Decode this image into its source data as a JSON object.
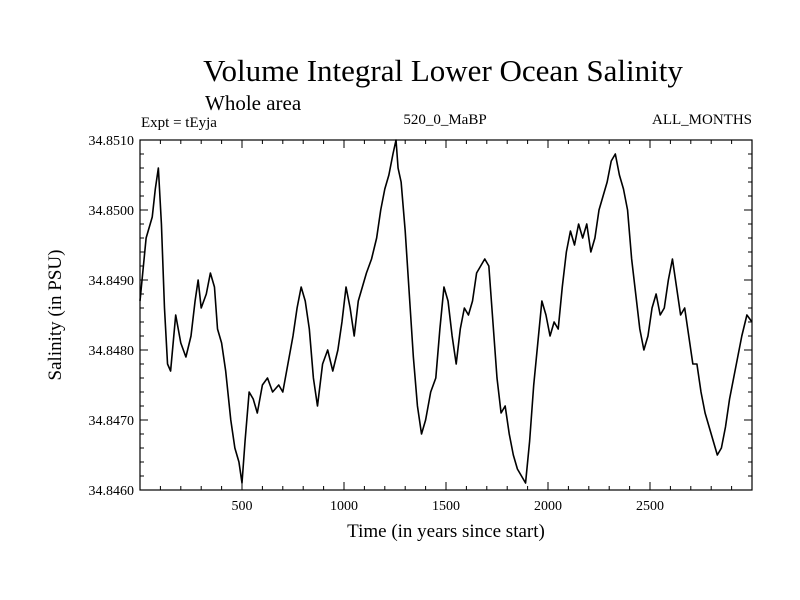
{
  "chart_data": {
    "type": "line",
    "title": "Volume Integral Lower Ocean Salinity",
    "subtitle": "Whole area",
    "experiment": "Expt = tEyja",
    "run_label": "520_0_MaBP",
    "months_label": "ALL_MONTHS",
    "xlabel": "Time (in years since start)",
    "ylabel": "Salinity (in PSU)",
    "xlim": [
      0,
      3000
    ],
    "ylim": [
      34.846,
      34.851
    ],
    "x_ticks": [
      500,
      1000,
      1500,
      2000,
      2500
    ],
    "y_ticks": [
      "34.8460",
      "34.8470",
      "34.8480",
      "34.8490",
      "34.8500",
      "34.8510"
    ],
    "series": [
      {
        "name": "Salinity",
        "color": "#000000",
        "points": [
          [
            0,
            34.8487
          ],
          [
            30,
            34.8496
          ],
          [
            60,
            34.8499
          ],
          [
            75,
            34.8503
          ],
          [
            90,
            34.8506
          ],
          [
            105,
            34.8498
          ],
          [
            120,
            34.8486
          ],
          [
            135,
            34.8478
          ],
          [
            150,
            34.8477
          ],
          [
            175,
            34.8485
          ],
          [
            200,
            34.8481
          ],
          [
            225,
            34.8479
          ],
          [
            250,
            34.8482
          ],
          [
            270,
            34.8487
          ],
          [
            285,
            34.849
          ],
          [
            300,
            34.8486
          ],
          [
            325,
            34.8488
          ],
          [
            345,
            34.8491
          ],
          [
            365,
            34.8489
          ],
          [
            380,
            34.8483
          ],
          [
            400,
            34.8481
          ],
          [
            420,
            34.8477
          ],
          [
            445,
            34.847
          ],
          [
            465,
            34.8466
          ],
          [
            485,
            34.8464
          ],
          [
            500,
            34.8461
          ],
          [
            515,
            34.8467
          ],
          [
            535,
            34.8474
          ],
          [
            555,
            34.8473
          ],
          [
            575,
            34.8471
          ],
          [
            600,
            34.8475
          ],
          [
            625,
            34.8476
          ],
          [
            650,
            34.8474
          ],
          [
            680,
            34.8475
          ],
          [
            700,
            34.8474
          ],
          [
            725,
            34.8478
          ],
          [
            750,
            34.8482
          ],
          [
            770,
            34.8486
          ],
          [
            790,
            34.8489
          ],
          [
            810,
            34.8487
          ],
          [
            830,
            34.8483
          ],
          [
            850,
            34.8476
          ],
          [
            870,
            34.8472
          ],
          [
            895,
            34.8478
          ],
          [
            920,
            34.848
          ],
          [
            945,
            34.8477
          ],
          [
            970,
            34.848
          ],
          [
            990,
            34.8484
          ],
          [
            1010,
            34.8489
          ],
          [
            1030,
            34.8486
          ],
          [
            1050,
            34.8482
          ],
          [
            1070,
            34.8487
          ],
          [
            1090,
            34.8489
          ],
          [
            1110,
            34.8491
          ],
          [
            1135,
            34.8493
          ],
          [
            1160,
            34.8496
          ],
          [
            1180,
            34.85
          ],
          [
            1200,
            34.8503
          ],
          [
            1220,
            34.8505
          ],
          [
            1240,
            34.8508
          ],
          [
            1255,
            34.851
          ],
          [
            1265,
            34.8506
          ],
          [
            1280,
            34.8504
          ],
          [
            1300,
            34.8497
          ],
          [
            1320,
            34.8488
          ],
          [
            1340,
            34.8479
          ],
          [
            1360,
            34.8472
          ],
          [
            1380,
            34.8468
          ],
          [
            1400,
            34.847
          ],
          [
            1425,
            34.8474
          ],
          [
            1450,
            34.8476
          ],
          [
            1470,
            34.8483
          ],
          [
            1490,
            34.8489
          ],
          [
            1510,
            34.8487
          ],
          [
            1530,
            34.8482
          ],
          [
            1550,
            34.8478
          ],
          [
            1570,
            34.8483
          ],
          [
            1590,
            34.8486
          ],
          [
            1610,
            34.8485
          ],
          [
            1630,
            34.8487
          ],
          [
            1650,
            34.8491
          ],
          [
            1670,
            34.8492
          ],
          [
            1690,
            34.8493
          ],
          [
            1710,
            34.8492
          ],
          [
            1730,
            34.8484
          ],
          [
            1750,
            34.8476
          ],
          [
            1770,
            34.8471
          ],
          [
            1790,
            34.8472
          ],
          [
            1810,
            34.8468
          ],
          [
            1830,
            34.8465
          ],
          [
            1850,
            34.8463
          ],
          [
            1870,
            34.8462
          ],
          [
            1890,
            34.8461
          ],
          [
            1910,
            34.8467
          ],
          [
            1930,
            34.8475
          ],
          [
            1950,
            34.8481
          ],
          [
            1970,
            34.8487
          ],
          [
            1990,
            34.8485
          ],
          [
            2010,
            34.8482
          ],
          [
            2030,
            34.8484
          ],
          [
            2050,
            34.8483
          ],
          [
            2070,
            34.8489
          ],
          [
            2090,
            34.8494
          ],
          [
            2110,
            34.8497
          ],
          [
            2130,
            34.8495
          ],
          [
            2150,
            34.8498
          ],
          [
            2170,
            34.8496
          ],
          [
            2190,
            34.8498
          ],
          [
            2210,
            34.8494
          ],
          [
            2230,
            34.8496
          ],
          [
            2250,
            34.85
          ],
          [
            2270,
            34.8502
          ],
          [
            2290,
            34.8504
          ],
          [
            2310,
            34.8507
          ],
          [
            2330,
            34.8508
          ],
          [
            2350,
            34.8505
          ],
          [
            2370,
            34.8503
          ],
          [
            2390,
            34.85
          ],
          [
            2410,
            34.8493
          ],
          [
            2430,
            34.8488
          ],
          [
            2450,
            34.8483
          ],
          [
            2470,
            34.848
          ],
          [
            2490,
            34.8482
          ],
          [
            2510,
            34.8486
          ],
          [
            2530,
            34.8488
          ],
          [
            2550,
            34.8485
          ],
          [
            2570,
            34.8486
          ],
          [
            2590,
            34.849
          ],
          [
            2610,
            34.8493
          ],
          [
            2630,
            34.8489
          ],
          [
            2650,
            34.8485
          ],
          [
            2670,
            34.8486
          ],
          [
            2690,
            34.8482
          ],
          [
            2710,
            34.8478
          ],
          [
            2730,
            34.8478
          ],
          [
            2750,
            34.8474
          ],
          [
            2770,
            34.8471
          ],
          [
            2790,
            34.8469
          ],
          [
            2810,
            34.8467
          ],
          [
            2830,
            34.8465
          ],
          [
            2850,
            34.8466
          ],
          [
            2870,
            34.8469
          ],
          [
            2890,
            34.8473
          ],
          [
            2910,
            34.8476
          ],
          [
            2930,
            34.8479
          ],
          [
            2950,
            34.8482
          ],
          [
            2975,
            34.8485
          ],
          [
            3000,
            34.8484
          ]
        ]
      }
    ]
  }
}
